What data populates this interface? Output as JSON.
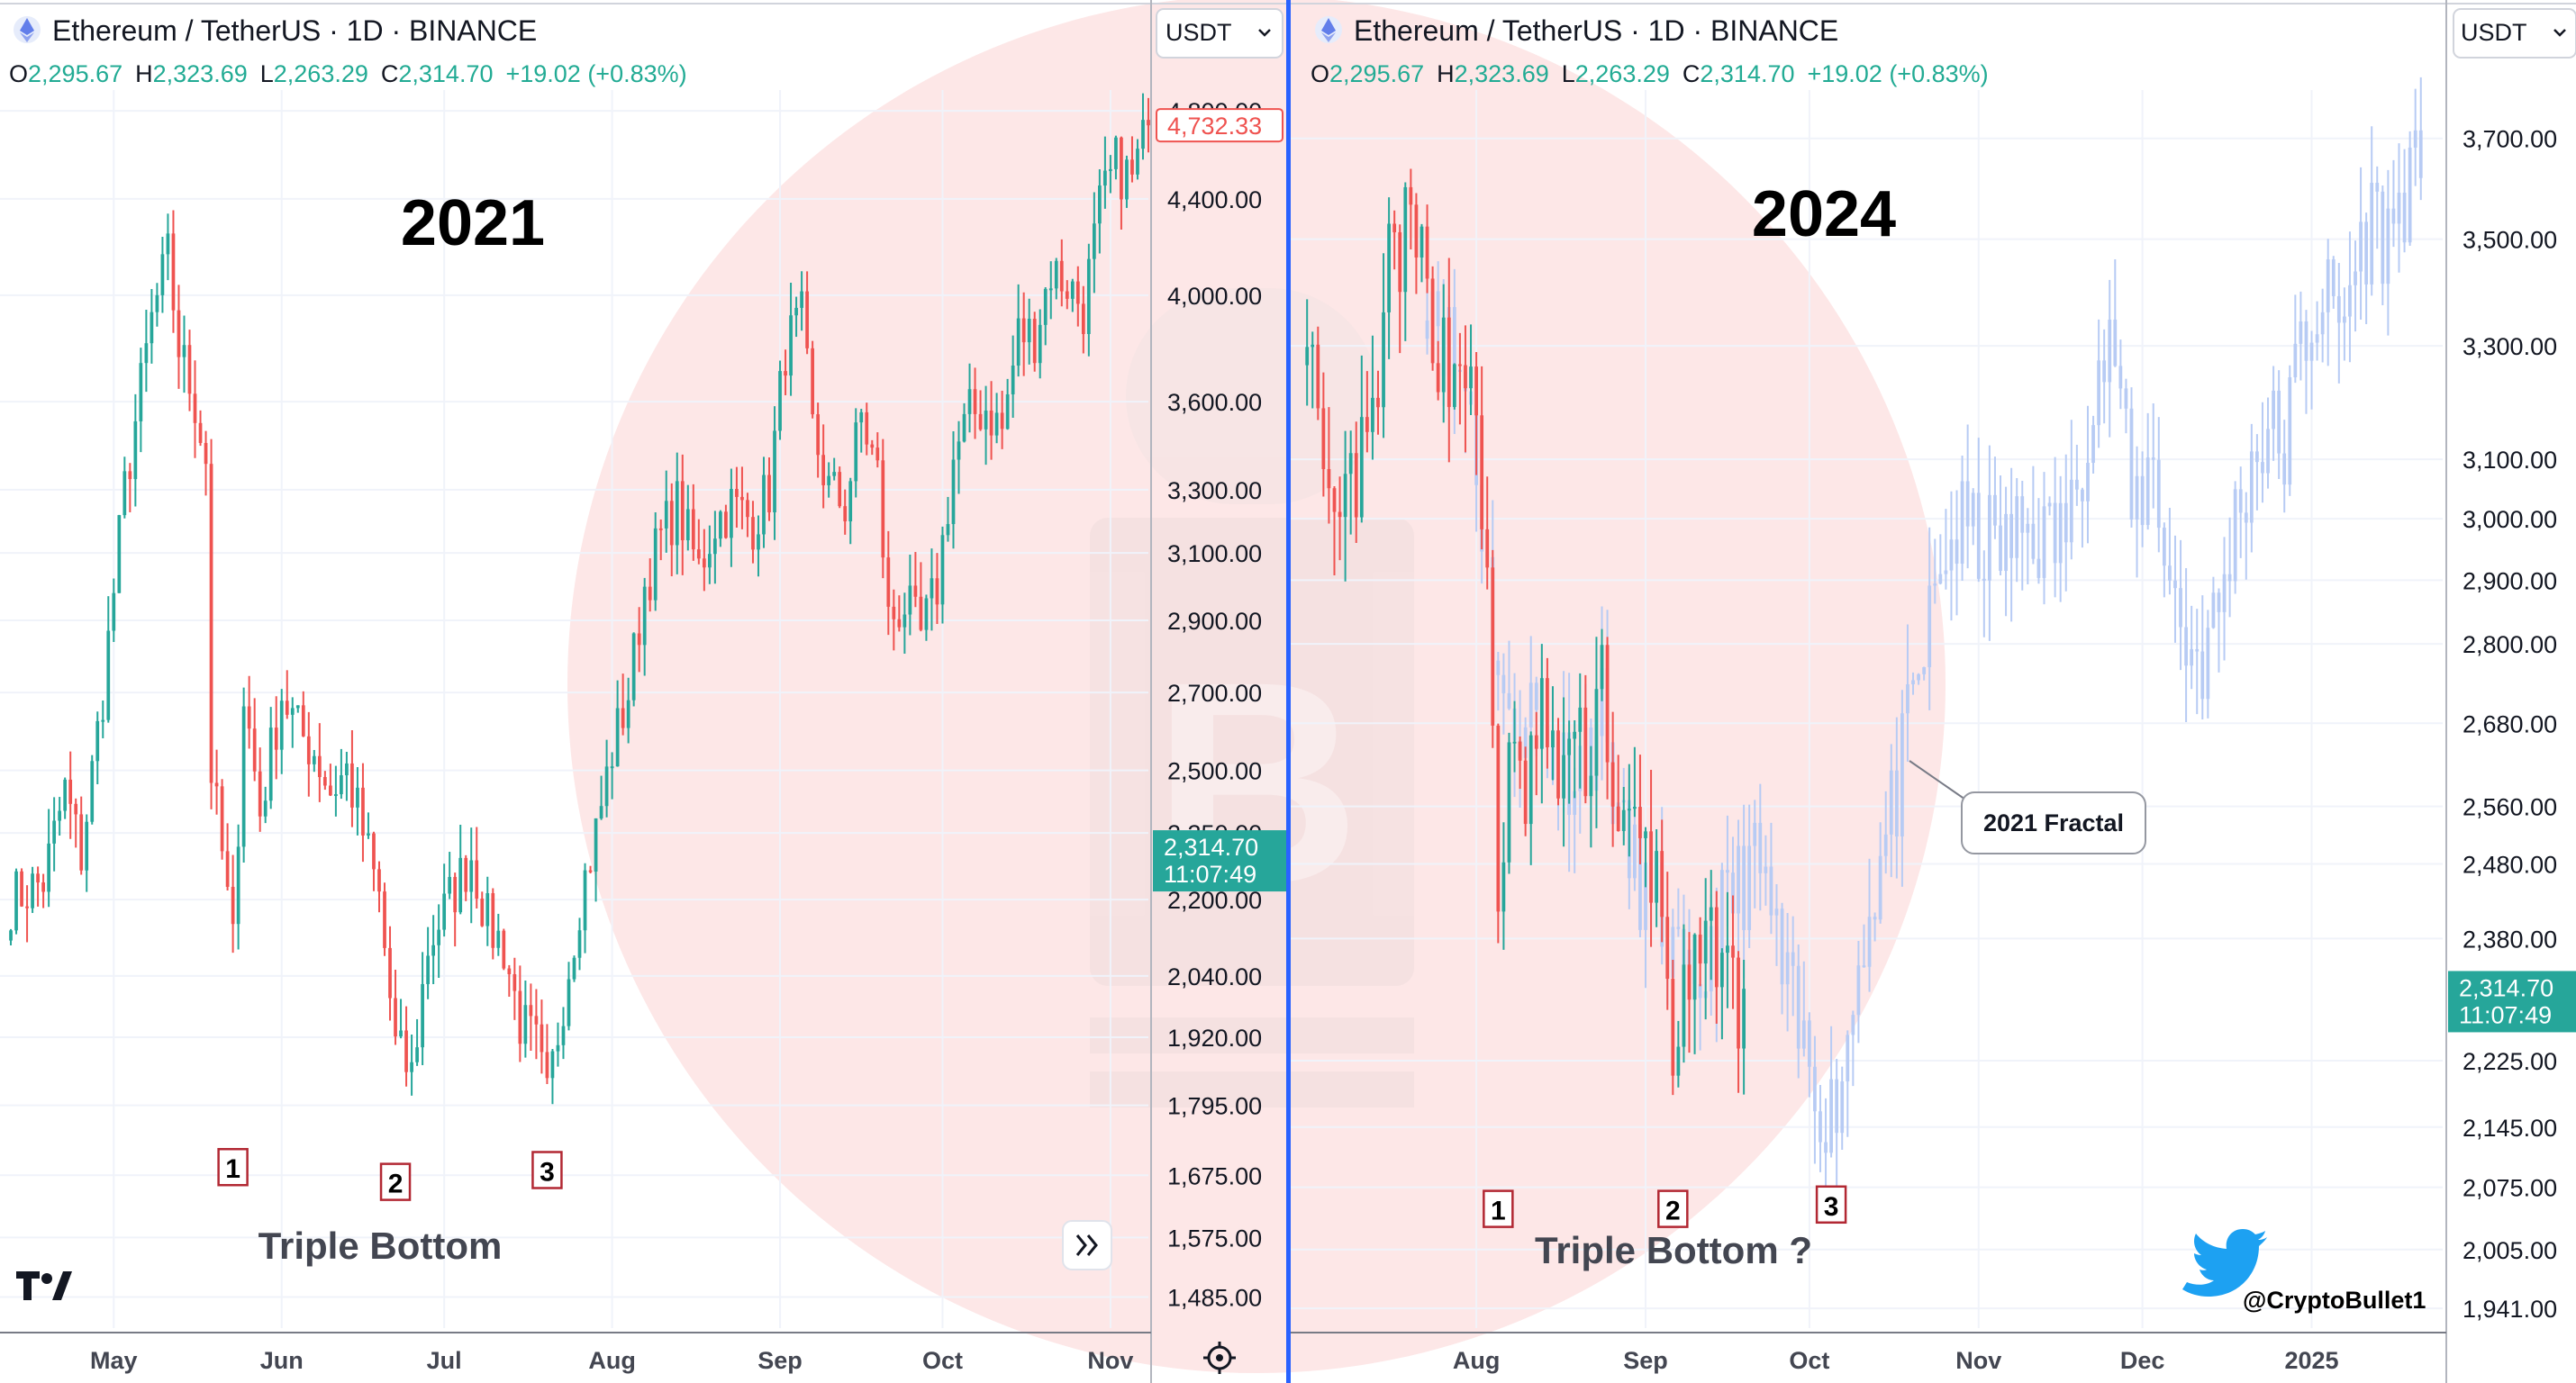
{
  "symbol": {
    "title": "Ethereum / TetherUS · 1D · BINANCE",
    "o_label": "O",
    "o_value": "2,295.67",
    "h_label": "H",
    "h_value": "2,323.69",
    "l_label": "L",
    "l_value": "2,263.29",
    "c_label": "C",
    "c_value": "2,314.70",
    "change": "+19.02 (+0.83%)"
  },
  "currency_selector": "USDT",
  "colors": {
    "up": "#26a69a",
    "down": "#ef5350",
    "fractal": "#b7cbf4",
    "price_tag": "#26a69a",
    "divider": "#2962ff",
    "watermark": "#fde4e4"
  },
  "logo_text": "TV",
  "twitter_handle": "@CryptoBullet1",
  "chart_data": [
    {
      "type": "candlestick",
      "panel": "left",
      "year_label": "2021",
      "pattern_label": "Triple Bottom",
      "markers": [
        {
          "label": "1",
          "date": "2021-05-23",
          "price": 1725
        },
        {
          "label": "2",
          "date": "2021-06-22",
          "price": 1700
        },
        {
          "label": "3",
          "date": "2021-07-20",
          "price": 1720
        }
      ],
      "scale": "log",
      "ylim": [
        1440,
        4900
      ],
      "y_ticks": [
        1485,
        1575,
        1675,
        1795,
        1920,
        2040,
        2200,
        2350,
        2500,
        2700,
        2900,
        3100,
        3300,
        3600,
        4000,
        4400,
        4800
      ],
      "y_tick_labels": [
        "1,485.00",
        "1,575.00",
        "1,675.00",
        "1,795.00",
        "1,920.00",
        "2,040.00",
        "2,200.00",
        "2,350.00",
        "2,500.00",
        "2,700.00",
        "2,900.00",
        "3,100.00",
        "3,300.00",
        "3,600.00",
        "4,000.00",
        "4,400.00",
        "4,800.00"
      ],
      "x_tick_labels": [
        "May",
        "Jun",
        "Jul",
        "Aug",
        "Sep",
        "Oct",
        "Nov"
      ],
      "x_tick_dates": [
        "2021-05-01",
        "2021-06-01",
        "2021-07-01",
        "2021-08-01",
        "2021-09-01",
        "2021-10-01",
        "2021-11-01"
      ],
      "last_price_label": "4,732.33",
      "last_price": 4732.33,
      "current_price_label": "2,314.70",
      "countdown": "11:07:49",
      "current_price": 2314.7,
      "series": [
        {
          "date": "2021-04-12",
          "close": 2200
        },
        {
          "date": "2021-04-18",
          "close": 2240
        },
        {
          "date": "2021-04-22",
          "close": 2450
        },
        {
          "date": "2021-04-25",
          "close": 2300
        },
        {
          "date": "2021-04-29",
          "close": 2700
        },
        {
          "date": "2021-05-03",
          "close": 3300
        },
        {
          "date": "2021-05-08",
          "close": 3900
        },
        {
          "date": "2021-05-11",
          "close": 4150
        },
        {
          "date": "2021-05-13",
          "close": 3800
        },
        {
          "date": "2021-05-16",
          "close": 3600
        },
        {
          "date": "2021-05-18",
          "close": 3400
        },
        {
          "date": "2021-05-19",
          "close": 2500
        },
        {
          "date": "2021-05-21",
          "close": 2300
        },
        {
          "date": "2021-05-23",
          "close": 2100
        },
        {
          "date": "2021-05-25",
          "close": 2700
        },
        {
          "date": "2021-05-28",
          "close": 2400
        },
        {
          "date": "2021-06-01",
          "close": 2700
        },
        {
          "date": "2021-06-04",
          "close": 2600
        },
        {
          "date": "2021-06-07",
          "close": 2550
        },
        {
          "date": "2021-06-10",
          "close": 2450
        },
        {
          "date": "2021-06-13",
          "close": 2500
        },
        {
          "date": "2021-06-16",
          "close": 2350
        },
        {
          "date": "2021-06-19",
          "close": 2200
        },
        {
          "date": "2021-06-22",
          "close": 1900
        },
        {
          "date": "2021-06-25",
          "close": 1850
        },
        {
          "date": "2021-06-28",
          "close": 2100
        },
        {
          "date": "2021-07-02",
          "close": 2200
        },
        {
          "date": "2021-07-06",
          "close": 2300
        },
        {
          "date": "2021-07-09",
          "close": 2150
        },
        {
          "date": "2021-07-12",
          "close": 2100
        },
        {
          "date": "2021-07-15",
          "close": 1950
        },
        {
          "date": "2021-07-18",
          "close": 1900
        },
        {
          "date": "2021-07-20",
          "close": 1800
        },
        {
          "date": "2021-07-23",
          "close": 2000
        },
        {
          "date": "2021-07-26",
          "close": 2200
        },
        {
          "date": "2021-07-29",
          "close": 2350
        },
        {
          "date": "2021-08-01",
          "close": 2550
        },
        {
          "date": "2021-08-04",
          "close": 2700
        },
        {
          "date": "2021-08-07",
          "close": 3000
        },
        {
          "date": "2021-08-10",
          "close": 3150
        },
        {
          "date": "2021-08-13",
          "close": 3250
        },
        {
          "date": "2021-08-17",
          "close": 3050
        },
        {
          "date": "2021-08-20",
          "close": 3200
        },
        {
          "date": "2021-08-23",
          "close": 3250
        },
        {
          "date": "2021-08-27",
          "close": 3200
        },
        {
          "date": "2021-08-30",
          "close": 3300
        },
        {
          "date": "2021-09-02",
          "close": 3800
        },
        {
          "date": "2021-09-05",
          "close": 3900
        },
        {
          "date": "2021-09-07",
          "close": 3500
        },
        {
          "date": "2021-09-10",
          "close": 3300
        },
        {
          "date": "2021-09-13",
          "close": 3250
        },
        {
          "date": "2021-09-16",
          "close": 3550
        },
        {
          "date": "2021-09-19",
          "close": 3350
        },
        {
          "date": "2021-09-21",
          "close": 2900
        },
        {
          "date": "2021-09-24",
          "close": 2950
        },
        {
          "date": "2021-09-27",
          "close": 2850
        },
        {
          "date": "2021-09-30",
          "close": 3000
        },
        {
          "date": "2021-10-03",
          "close": 3400
        },
        {
          "date": "2021-10-06",
          "close": 3550
        },
        {
          "date": "2021-10-09",
          "close": 3580
        },
        {
          "date": "2021-10-12",
          "close": 3500
        },
        {
          "date": "2021-10-15",
          "close": 3850
        },
        {
          "date": "2021-10-18",
          "close": 3850
        },
        {
          "date": "2021-10-21",
          "close": 4100
        },
        {
          "date": "2021-10-24",
          "close": 4050
        },
        {
          "date": "2021-10-27",
          "close": 3950
        },
        {
          "date": "2021-10-30",
          "close": 4350
        },
        {
          "date": "2021-11-02",
          "close": 4550
        },
        {
          "date": "2021-11-05",
          "close": 4480
        },
        {
          "date": "2021-11-08",
          "close": 4732
        }
      ]
    },
    {
      "type": "candlestick",
      "panel": "right",
      "year_label": "2024",
      "pattern_label": "Triple Bottom ?",
      "fractal_label": "2021 Fractal",
      "markers": [
        {
          "label": "1",
          "date": "2024-08-05",
          "price": 2075
        },
        {
          "label": "2",
          "date": "2024-09-06",
          "price": 2075
        },
        {
          "label": "3",
          "date": "2024-10-05",
          "price": 2080
        }
      ],
      "scale": "log",
      "ylim": [
        1920,
        3800
      ],
      "y_ticks": [
        1941,
        2005,
        2075,
        2145,
        2225,
        2380,
        2480,
        2560,
        2680,
        2800,
        2900,
        3000,
        3100,
        3300,
        3500,
        3700
      ],
      "y_tick_labels": [
        "1,941.00",
        "2,005.00",
        "2,075.00",
        "2,145.00",
        "2,225.00",
        "2,380.00",
        "2,480.00",
        "2,560.00",
        "2,680.00",
        "2,800.00",
        "2,900.00",
        "3,000.00",
        "3,100.00",
        "3,300.00",
        "3,500.00",
        "3,700.00"
      ],
      "x_tick_labels": [
        "Aug",
        "Sep",
        "Oct",
        "Nov",
        "Dec",
        "2025"
      ],
      "x_tick_dates": [
        "2024-08-01",
        "2024-09-01",
        "2024-10-01",
        "2024-11-01",
        "2024-12-01",
        "2025-01-01"
      ],
      "current_price_label": "2,314.70",
      "countdown": "11:07:49",
      "current_price": 2314.7,
      "series": [
        {
          "date": "2024-07-01",
          "close": 3400
        },
        {
          "date": "2024-07-04",
          "close": 3000
        },
        {
          "date": "2024-07-06",
          "close": 2950
        },
        {
          "date": "2024-07-09",
          "close": 3050
        },
        {
          "date": "2024-07-12",
          "close": 3100
        },
        {
          "date": "2024-07-14",
          "close": 3200
        },
        {
          "date": "2024-07-16",
          "close": 3450
        },
        {
          "date": "2024-07-19",
          "close": 3500
        },
        {
          "date": "2024-07-21",
          "close": 3480
        },
        {
          "date": "2024-07-24",
          "close": 3350
        },
        {
          "date": "2024-07-27",
          "close": 3250
        },
        {
          "date": "2024-07-30",
          "close": 3300
        },
        {
          "date": "2024-08-01",
          "close": 3100
        },
        {
          "date": "2024-08-03",
          "close": 2900
        },
        {
          "date": "2024-08-05",
          "close": 2450
        },
        {
          "date": "2024-08-07",
          "close": 2600
        },
        {
          "date": "2024-08-10",
          "close": 2580
        },
        {
          "date": "2024-08-13",
          "close": 2700
        },
        {
          "date": "2024-08-15",
          "close": 2600
        },
        {
          "date": "2024-08-18",
          "close": 2650
        },
        {
          "date": "2024-08-21",
          "close": 2620
        },
        {
          "date": "2024-08-24",
          "close": 2770
        },
        {
          "date": "2024-08-27",
          "close": 2500
        },
        {
          "date": "2024-08-30",
          "close": 2520
        },
        {
          "date": "2024-09-02",
          "close": 2480
        },
        {
          "date": "2024-09-04",
          "close": 2420
        },
        {
          "date": "2024-09-06",
          "close": 2250
        },
        {
          "date": "2024-09-09",
          "close": 2300
        },
        {
          "date": "2024-09-12",
          "close": 2350
        },
        {
          "date": "2024-09-15",
          "close": 2400
        },
        {
          "date": "2024-09-17",
          "close": 2300
        },
        {
          "date": "2024-09-19",
          "close": 2315
        }
      ],
      "fractal_projection": [
        {
          "date": "2024-07-23",
          "close": 3450
        },
        {
          "date": "2024-07-27",
          "close": 3300
        },
        {
          "date": "2024-07-31",
          "close": 3200
        },
        {
          "date": "2024-08-03",
          "close": 2900
        },
        {
          "date": "2024-08-07",
          "close": 2650
        },
        {
          "date": "2024-08-10",
          "close": 2720
        },
        {
          "date": "2024-08-14",
          "close": 2650
        },
        {
          "date": "2024-08-17",
          "close": 2620
        },
        {
          "date": "2024-08-21",
          "close": 2640
        },
        {
          "date": "2024-08-24",
          "close": 2700
        },
        {
          "date": "2024-08-28",
          "close": 2500
        },
        {
          "date": "2024-09-01",
          "close": 2450
        },
        {
          "date": "2024-09-04",
          "close": 2400
        },
        {
          "date": "2024-09-07",
          "close": 2330
        },
        {
          "date": "2024-09-10",
          "close": 2280
        },
        {
          "date": "2024-09-13",
          "close": 2380
        },
        {
          "date": "2024-09-16",
          "close": 2420
        },
        {
          "date": "2024-09-20",
          "close": 2480
        },
        {
          "date": "2024-09-23",
          "close": 2450
        },
        {
          "date": "2024-09-26",
          "close": 2330
        },
        {
          "date": "2024-09-29",
          "close": 2250
        },
        {
          "date": "2024-10-02",
          "close": 2200
        },
        {
          "date": "2024-10-05",
          "close": 2160
        },
        {
          "date": "2024-10-08",
          "close": 2250
        },
        {
          "date": "2024-10-11",
          "close": 2400
        },
        {
          "date": "2024-10-14",
          "close": 2480
        },
        {
          "date": "2024-10-17",
          "close": 2580
        },
        {
          "date": "2024-10-20",
          "close": 2700
        },
        {
          "date": "2024-10-23",
          "close": 2830
        },
        {
          "date": "2024-10-26",
          "close": 2950
        },
        {
          "date": "2024-10-29",
          "close": 2980
        },
        {
          "date": "2024-11-02",
          "close": 2960
        },
        {
          "date": "2024-11-06",
          "close": 2950
        },
        {
          "date": "2024-11-10",
          "close": 2990
        },
        {
          "date": "2024-11-14",
          "close": 2960
        },
        {
          "date": "2024-11-18",
          "close": 3000
        },
        {
          "date": "2024-11-22",
          "close": 3250
        },
        {
          "date": "2024-11-26",
          "close": 3300
        },
        {
          "date": "2024-11-29",
          "close": 3000
        },
        {
          "date": "2024-12-03",
          "close": 3100
        },
        {
          "date": "2024-12-06",
          "close": 2900
        },
        {
          "date": "2024-12-09",
          "close": 2800
        },
        {
          "date": "2024-12-12",
          "close": 2780
        },
        {
          "date": "2024-12-15",
          "close": 2850
        },
        {
          "date": "2024-12-18",
          "close": 3000
        },
        {
          "date": "2024-12-21",
          "close": 3100
        },
        {
          "date": "2024-12-24",
          "close": 3150
        },
        {
          "date": "2024-12-27",
          "close": 3120
        },
        {
          "date": "2024-12-30",
          "close": 3300
        },
        {
          "date": "2025-01-03",
          "close": 3400
        },
        {
          "date": "2025-01-06",
          "close": 3330
        },
        {
          "date": "2025-01-09",
          "close": 3450
        },
        {
          "date": "2025-01-12",
          "close": 3550
        },
        {
          "date": "2025-01-15",
          "close": 3500
        },
        {
          "date": "2025-01-18",
          "close": 3600
        },
        {
          "date": "2025-01-21",
          "close": 3620
        }
      ]
    }
  ]
}
